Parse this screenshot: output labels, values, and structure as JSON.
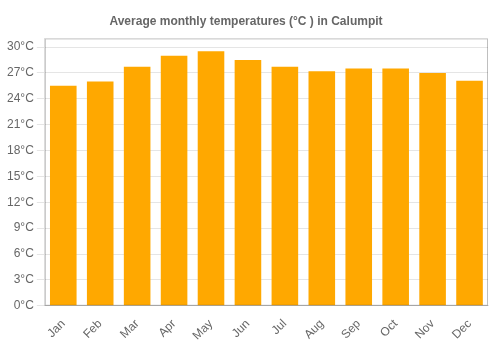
{
  "chart_data": {
    "type": "bar",
    "title": "Average monthly temperatures (°C ) in Calumpit",
    "categories": [
      "Jan",
      "Feb",
      "Mar",
      "Apr",
      "May",
      "Jun",
      "Jul",
      "Aug",
      "Sep",
      "Oct",
      "Nov",
      "Dec"
    ],
    "values": [
      25.5,
      26.0,
      27.7,
      29.0,
      29.5,
      28.5,
      27.7,
      27.2,
      27.5,
      27.5,
      27.0,
      26.1
    ],
    "color": "#FFA800",
    "ylim": [
      0,
      31
    ],
    "yticks": [
      {
        "value": 0,
        "label": "0°C"
      },
      {
        "value": 3,
        "label": "3°C"
      },
      {
        "value": 6,
        "label": "6°C"
      },
      {
        "value": 9,
        "label": "9°C"
      },
      {
        "value": 12,
        "label": "12°C"
      },
      {
        "value": 15,
        "label": "15°C"
      },
      {
        "value": 18,
        "label": "18°C"
      },
      {
        "value": 21,
        "label": "21°C"
      },
      {
        "value": 24,
        "label": "24°C"
      },
      {
        "value": 27,
        "label": "27°C"
      },
      {
        "value": 30,
        "label": "30°C"
      }
    ],
    "grid": true
  }
}
